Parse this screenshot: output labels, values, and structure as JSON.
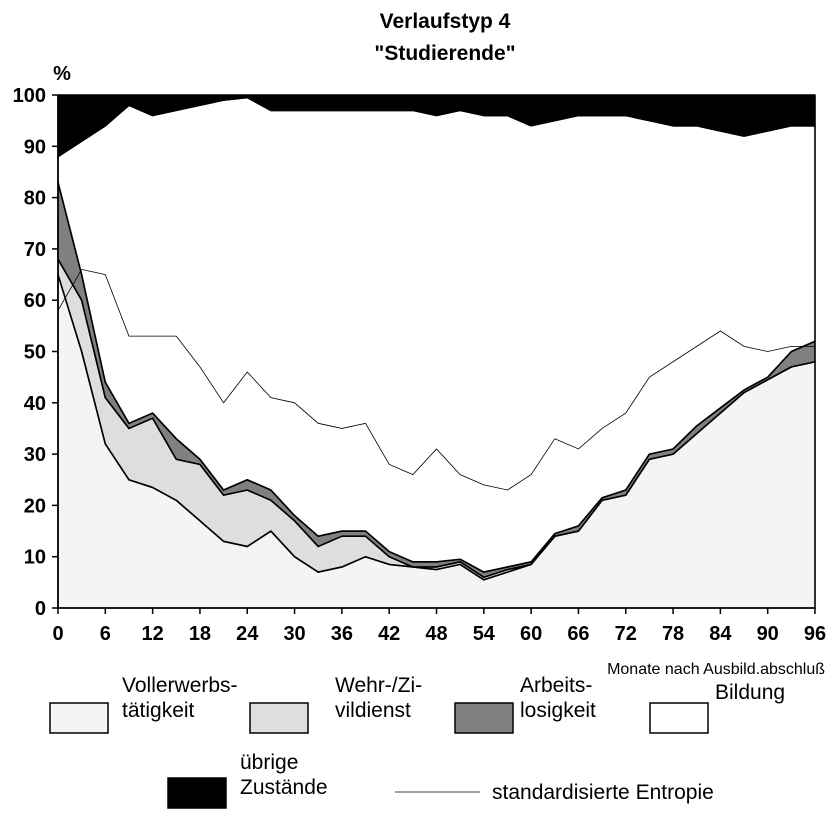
{
  "chart_data": {
    "type": "stacked_area",
    "title": "Verlaufstyp 4",
    "subtitle": "\"Studierende\"",
    "y_label": "%",
    "x_label": "Monate nach Ausbild.abschluß",
    "x": [
      0,
      3,
      6,
      9,
      12,
      15,
      18,
      21,
      24,
      27,
      30,
      33,
      36,
      39,
      42,
      45,
      48,
      51,
      54,
      57,
      60,
      63,
      66,
      69,
      72,
      75,
      78,
      81,
      84,
      87,
      90,
      93,
      96
    ],
    "xlim": [
      0,
      96
    ],
    "xticks": [
      0,
      6,
      12,
      18,
      24,
      30,
      36,
      42,
      48,
      54,
      60,
      66,
      72,
      78,
      84,
      90,
      96
    ],
    "ylim": [
      0,
      100
    ],
    "yticks": [
      0,
      10,
      20,
      30,
      40,
      50,
      60,
      70,
      80,
      90,
      100
    ],
    "series": [
      {
        "name": "Vollerwerbs-\ntätigkeit",
        "color": "#f4f4f4",
        "values": [
          65,
          50,
          32,
          25,
          23.5,
          21,
          17,
          13,
          12,
          15,
          10,
          7,
          8,
          10,
          8.5,
          8,
          7.5,
          8.5,
          5.5,
          7,
          8.5,
          14,
          15,
          21,
          22,
          29,
          30,
          34,
          38,
          42,
          44.5,
          47,
          48
        ]
      },
      {
        "name": "Wehr-/Zi-\nvildienst",
        "color": "#dedede",
        "values": [
          3,
          10,
          9,
          10,
          13.5,
          8,
          11,
          9,
          11,
          6,
          7,
          5,
          6,
          4,
          1.5,
          0,
          0.5,
          0.5,
          0.5,
          0.5,
          0,
          0,
          0,
          0,
          0,
          0,
          0,
          0,
          0,
          0,
          0,
          0,
          0
        ]
      },
      {
        "name": "Arbeits-\nlosigkeit",
        "color": "#808080",
        "values": [
          15,
          5,
          3,
          1,
          1,
          4,
          1,
          1,
          2,
          2,
          1,
          2,
          1,
          1,
          1,
          1,
          1,
          0.5,
          1,
          0.5,
          0.5,
          0.5,
          1,
          0.5,
          1,
          1,
          1,
          1.5,
          1,
          0.5,
          0.5,
          3,
          4
        ]
      },
      {
        "name": "Bildung",
        "color": "#ffffff",
        "values": [
          5,
          26,
          50,
          62,
          58,
          64,
          69,
          76,
          74.5,
          74,
          79,
          83,
          82,
          82,
          86,
          88,
          87,
          87.5,
          89,
          88,
          85,
          80.5,
          80,
          74.5,
          73,
          65,
          63,
          58.5,
          54,
          49.5,
          48,
          44,
          42
        ]
      },
      {
        "name": "übrige\nZustände",
        "color": "#000000",
        "values": [
          12,
          9,
          6,
          2,
          4,
          3,
          2,
          1,
          0.5,
          3,
          3,
          3,
          3,
          3,
          3,
          3,
          4,
          3,
          4,
          4,
          6,
          5,
          4,
          4,
          4,
          5,
          6,
          6,
          7,
          8,
          7,
          6,
          6
        ]
      }
    ],
    "line": {
      "name": "standardisierte Entropie",
      "color": "#000000",
      "values": [
        58,
        66,
        65,
        53,
        53,
        53,
        47,
        40,
        46,
        41,
        40,
        36,
        35,
        36,
        28,
        26,
        31,
        26,
        24,
        23,
        26,
        33,
        31,
        35,
        38,
        45,
        48,
        51,
        54,
        51,
        50,
        51,
        51
      ]
    }
  }
}
